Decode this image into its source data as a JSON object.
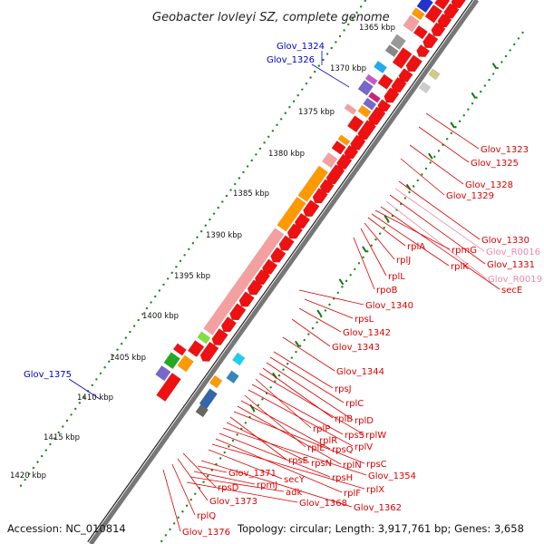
{
  "title": "Geobacter lovleyi SZ, complete genome",
  "footer": {
    "accession": "Accession: NC_010814",
    "summary": "Topology: circular; Length: 3,917,761 bp; Genes: 3,658"
  },
  "ticks": [
    "1365 kbp",
    "1370 kbp",
    "1375 kbp",
    "1380 kbp",
    "1385 kbp",
    "1390 kbp",
    "1395 kbp",
    "1400 kbp",
    "1405 kbp",
    "1410 kbp",
    "1415 kbp",
    "1420 kbp"
  ],
  "labels_left": [
    "Glov_1324",
    "Glov_1326",
    "Glov_1375"
  ],
  "labels_right": [
    "Glov_1323",
    "Glov_1325",
    "Glov_1328",
    "Glov_1329",
    "Glov_1330",
    "Glov_R0016",
    "Glov_1331",
    "Glov_R0019",
    "secE",
    "rpmG",
    "rplK",
    "rplA",
    "rplJ",
    "rplL",
    "rpoB",
    "Glov_1340",
    "rpsL",
    "Glov_1342",
    "Glov_1343",
    "Glov_1344",
    "rpsJ",
    "rplC",
    "rplD",
    "rplB",
    "rplW",
    "rplP",
    "rpsS",
    "rplV",
    "rplE",
    "rpsQ",
    "rplN",
    "rpsC",
    "rpsE",
    "rpsN",
    "Glov_1354",
    "rpsH",
    "rplF",
    "rplX",
    "secY",
    "rplR",
    "Glov_1362",
    "Glov_1371",
    "rpmJ",
    "adk",
    "Glov_1368",
    "rpsD",
    "Glov_1373",
    "rplQ",
    "Glov_1376"
  ],
  "colors": {
    "forward_gene": "#ee1111",
    "rRNA": "#ff9900",
    "ribosomal": "#f4a0a0",
    "other": "#3344dd",
    "tick": "#117711",
    "label_red": "#dd0000",
    "label_blue": "#0000cc",
    "label_pink": "#ee88aa",
    "backbone": "#777777"
  }
}
